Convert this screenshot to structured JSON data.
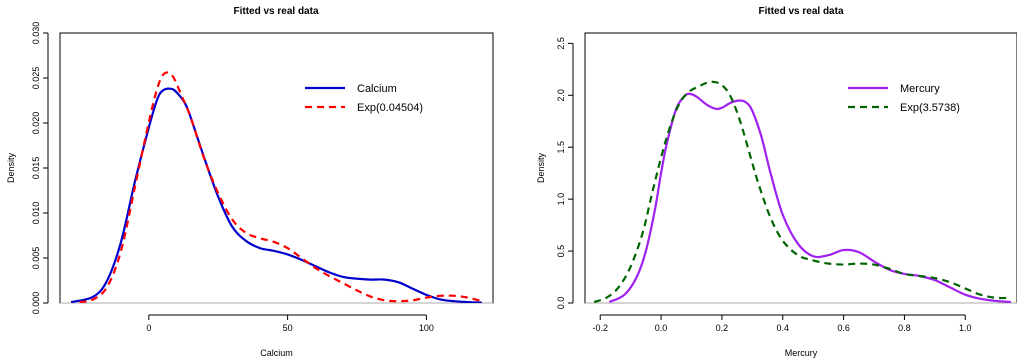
{
  "chart_data": [
    {
      "type": "line",
      "title": "Fitted vs real data",
      "xlabel": "Calcium",
      "ylabel": "Density",
      "xlim": [
        -32,
        124
      ],
      "ylim": [
        0,
        0.03
      ],
      "x_ticks": [
        0,
        50,
        100
      ],
      "x_tick_labels": [
        "0",
        "50",
        "100"
      ],
      "y_ticks": [
        0,
        0.005,
        0.01,
        0.015,
        0.02,
        0.025,
        0.03
      ],
      "y_tick_labels": [
        "0.000",
        "0.005",
        "0.010",
        "0.015",
        "0.020",
        "0.025",
        "0.030"
      ],
      "zero_line": true,
      "legend_position": "top-right",
      "series": [
        {
          "name": "Calcium",
          "color": "#0000CD",
          "dash": "solid",
          "x": [
            -28,
            -20,
            -15,
            -10,
            -5,
            0,
            3,
            5,
            8,
            10,
            13,
            15,
            20,
            25,
            30,
            35,
            40,
            45,
            50,
            55,
            60,
            65,
            70,
            75,
            80,
            85,
            90,
            95,
            100,
            105,
            110,
            115,
            120
          ],
          "y": [
            0.0001,
            0.0007,
            0.0025,
            0.0068,
            0.0135,
            0.0195,
            0.0226,
            0.0236,
            0.0238,
            0.0234,
            0.0222,
            0.0207,
            0.0161,
            0.0118,
            0.0085,
            0.0069,
            0.0061,
            0.0058,
            0.0054,
            0.0048,
            0.0041,
            0.0034,
            0.0029,
            0.0027,
            0.0026,
            0.0026,
            0.0023,
            0.0016,
            0.0009,
            0.0004,
            0.0002,
            0.0001,
            3e-05
          ]
        },
        {
          "name": "Exp(0.04504)",
          "color": "#FF0000",
          "dash": "dashed",
          "x": [
            -25,
            -20,
            -15,
            -10,
            -5,
            0,
            3,
            5,
            7,
            9,
            12,
            15,
            20,
            25,
            30,
            35,
            40,
            45,
            50,
            55,
            60,
            65,
            70,
            75,
            80,
            85,
            90,
            95,
            100,
            105,
            110,
            115,
            120
          ],
          "y": [
            0.0001,
            0.0004,
            0.0018,
            0.0058,
            0.0129,
            0.0201,
            0.0238,
            0.0253,
            0.0256,
            0.025,
            0.0229,
            0.0207,
            0.016,
            0.0122,
            0.0093,
            0.0078,
            0.0072,
            0.0068,
            0.0061,
            0.005,
            0.0039,
            0.003,
            0.0022,
            0.0014,
            0.0007,
            0.0003,
            0.0002,
            0.0003,
            0.0006,
            0.0008,
            0.0008,
            0.0006,
            0.0002
          ]
        }
      ]
    },
    {
      "type": "line",
      "title": "Fitted vs real data",
      "xlabel": "Mercury",
      "ylabel": "Density",
      "xlim": [
        -0.25,
        1.17
      ],
      "ylim": [
        0,
        2.6
      ],
      "x_ticks": [
        -0.2,
        0.0,
        0.2,
        0.4,
        0.6,
        0.8,
        1.0
      ],
      "x_tick_labels": [
        "-0.2",
        "0.0",
        "0.2",
        "0.4",
        "0.6",
        "0.8",
        "1.0"
      ],
      "y_ticks": [
        0,
        0.5,
        1.0,
        1.5,
        2.0,
        2.5
      ],
      "y_tick_labels": [
        "0.0",
        "0.5",
        "1.0",
        "1.5",
        "2.0",
        "2.5"
      ],
      "zero_line": true,
      "legend_position": "top-right",
      "series": [
        {
          "name": "Mercury",
          "color": "#A020F0",
          "dash": "solid",
          "x": [
            -0.17,
            -0.12,
            -0.08,
            -0.05,
            -0.02,
            0.0,
            0.02,
            0.05,
            0.08,
            0.1,
            0.12,
            0.15,
            0.18,
            0.2,
            0.23,
            0.26,
            0.28,
            0.3,
            0.33,
            0.36,
            0.4,
            0.45,
            0.5,
            0.55,
            0.6,
            0.65,
            0.7,
            0.75,
            0.8,
            0.85,
            0.9,
            0.95,
            1.0,
            1.05,
            1.1,
            1.15
          ],
          "y": [
            0.01,
            0.08,
            0.25,
            0.5,
            0.9,
            1.25,
            1.55,
            1.87,
            2.0,
            2.01,
            1.98,
            1.91,
            1.87,
            1.88,
            1.93,
            1.95,
            1.93,
            1.85,
            1.6,
            1.25,
            0.85,
            0.57,
            0.45,
            0.46,
            0.51,
            0.49,
            0.4,
            0.32,
            0.28,
            0.26,
            0.22,
            0.15,
            0.08,
            0.04,
            0.02,
            0.01
          ]
        },
        {
          "name": "Exp(3.5738)",
          "color": "#006400",
          "dash": "dashed",
          "x": [
            -0.22,
            -0.18,
            -0.14,
            -0.1,
            -0.06,
            -0.03,
            0.0,
            0.03,
            0.06,
            0.09,
            0.12,
            0.15,
            0.17,
            0.2,
            0.23,
            0.26,
            0.29,
            0.32,
            0.36,
            0.4,
            0.45,
            0.5,
            0.55,
            0.6,
            0.65,
            0.7,
            0.75,
            0.8,
            0.85,
            0.9,
            0.95,
            1.0,
            1.05,
            1.1,
            1.15
          ],
          "y": [
            0.01,
            0.05,
            0.15,
            0.35,
            0.68,
            1.05,
            1.4,
            1.7,
            1.92,
            2.03,
            2.08,
            2.12,
            2.13,
            2.1,
            1.98,
            1.75,
            1.45,
            1.15,
            0.82,
            0.6,
            0.46,
            0.41,
            0.38,
            0.37,
            0.38,
            0.37,
            0.33,
            0.28,
            0.26,
            0.24,
            0.2,
            0.14,
            0.08,
            0.05,
            0.05
          ]
        }
      ]
    }
  ]
}
